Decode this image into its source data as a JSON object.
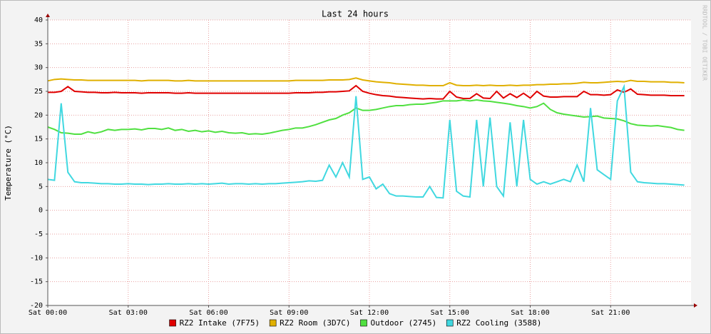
{
  "chart_data": {
    "type": "line",
    "title": "Last 24 hours",
    "y_label": "Temperature (°C)",
    "watermark": "RRDTOOL / TOBI OETIKER",
    "xlim": [
      0,
      24
    ],
    "ylim": [
      -20,
      40
    ],
    "yticks": [
      -20,
      -15,
      -10,
      -5,
      0,
      5,
      10,
      15,
      20,
      25,
      30,
      35,
      40
    ],
    "xticks": [
      {
        "value": 0,
        "label": "Sat 00:00"
      },
      {
        "value": 3,
        "label": "Sat 03:00"
      },
      {
        "value": 6,
        "label": "Sat 06:00"
      },
      {
        "value": 9,
        "label": "Sat 09:00"
      },
      {
        "value": 12,
        "label": "Sat 12:00"
      },
      {
        "value": 15,
        "label": "Sat 15:00"
      },
      {
        "value": 18,
        "label": "Sat 18:00"
      },
      {
        "value": 21,
        "label": "Sat 21:00"
      }
    ],
    "grid": true,
    "legend": "bottom",
    "x": [
      0,
      0.25,
      0.5,
      0.75,
      1,
      1.25,
      1.5,
      1.75,
      2,
      2.25,
      2.5,
      2.75,
      3,
      3.25,
      3.5,
      3.75,
      4,
      4.25,
      4.5,
      4.75,
      5,
      5.25,
      5.5,
      5.75,
      6,
      6.25,
      6.5,
      6.75,
      7,
      7.25,
      7.5,
      7.75,
      8,
      8.25,
      8.5,
      8.75,
      9,
      9.25,
      9.5,
      9.75,
      10,
      10.25,
      10.5,
      10.75,
      11,
      11.25,
      11.5,
      11.75,
      12,
      12.25,
      12.5,
      12.75,
      13,
      13.25,
      13.5,
      13.75,
      14,
      14.25,
      14.5,
      14.75,
      15,
      15.25,
      15.5,
      15.75,
      16,
      16.25,
      16.5,
      16.75,
      17,
      17.25,
      17.5,
      17.75,
      18,
      18.25,
      18.5,
      18.75,
      19,
      19.25,
      19.5,
      19.75,
      20,
      20.25,
      20.5,
      20.75,
      21,
      21.25,
      21.5,
      21.75,
      22,
      22.25,
      22.5,
      22.75,
      23,
      23.25,
      23.5,
      23.75
    ],
    "series": [
      {
        "name": "RZ2 Intake (7F75)",
        "color": "#e00000",
        "values": [
          24.8,
          24.8,
          25,
          26,
          25,
          24.9,
          24.8,
          24.8,
          24.7,
          24.7,
          24.8,
          24.7,
          24.7,
          24.7,
          24.6,
          24.7,
          24.7,
          24.7,
          24.7,
          24.6,
          24.6,
          24.7,
          24.6,
          24.6,
          24.6,
          24.6,
          24.6,
          24.6,
          24.6,
          24.6,
          24.6,
          24.6,
          24.6,
          24.6,
          24.6,
          24.6,
          24.6,
          24.7,
          24.7,
          24.7,
          24.8,
          24.8,
          24.9,
          24.9,
          25,
          25.1,
          26.2,
          25,
          24.6,
          24.3,
          24.1,
          24,
          23.8,
          23.7,
          23.6,
          23.5,
          23.4,
          23.5,
          23.4,
          23.4,
          25,
          23.8,
          23.5,
          23.5,
          24.5,
          23.6,
          23.5,
          25,
          23.6,
          24.5,
          23.7,
          24.6,
          23.6,
          25,
          24,
          23.8,
          23.8,
          23.9,
          23.9,
          23.9,
          25,
          24.3,
          24.3,
          24.2,
          24.3,
          25.3,
          24.8,
          25.5,
          24.4,
          24.3,
          24.2,
          24.2,
          24.2,
          24.1,
          24.1,
          24.1
        ]
      },
      {
        "name": "RZ2 Room (3D7C)",
        "color": "#e0b000",
        "values": [
          27.2,
          27.5,
          27.6,
          27.5,
          27.4,
          27.4,
          27.3,
          27.3,
          27.3,
          27.3,
          27.3,
          27.3,
          27.3,
          27.3,
          27.2,
          27.3,
          27.3,
          27.3,
          27.3,
          27.2,
          27.2,
          27.3,
          27.2,
          27.2,
          27.2,
          27.2,
          27.2,
          27.2,
          27.2,
          27.2,
          27.2,
          27.2,
          27.2,
          27.2,
          27.2,
          27.2,
          27.2,
          27.3,
          27.3,
          27.3,
          27.3,
          27.3,
          27.4,
          27.4,
          27.4,
          27.5,
          27.8,
          27.4,
          27.2,
          27,
          26.9,
          26.8,
          26.6,
          26.5,
          26.4,
          26.3,
          26.3,
          26.2,
          26.2,
          26.2,
          26.8,
          26.3,
          26.2,
          26.2,
          26.3,
          26.2,
          26.3,
          26.2,
          26.2,
          26.3,
          26.2,
          26.3,
          26.3,
          26.4,
          26.4,
          26.5,
          26.5,
          26.6,
          26.6,
          26.7,
          26.9,
          26.8,
          26.8,
          26.9,
          27,
          27.1,
          27,
          27.3,
          27.1,
          27.1,
          27,
          27,
          27,
          26.9,
          26.9,
          26.8
        ]
      },
      {
        "name": "Outdoor (2745)",
        "color": "#50e040",
        "values": [
          17.5,
          17,
          16.3,
          16.2,
          16,
          16,
          16.5,
          16.2,
          16.5,
          17,
          16.8,
          17,
          17,
          17.1,
          16.9,
          17.2,
          17.2,
          17,
          17.3,
          16.8,
          17,
          16.6,
          16.8,
          16.5,
          16.7,
          16.4,
          16.6,
          16.3,
          16.2,
          16.3,
          16,
          16.1,
          16,
          16.2,
          16.5,
          16.8,
          17,
          17.3,
          17.3,
          17.6,
          18,
          18.5,
          19,
          19.3,
          20,
          20.5,
          21.5,
          21,
          21,
          21.2,
          21.5,
          21.8,
          22,
          22,
          22.2,
          22.3,
          22.3,
          22.5,
          22.7,
          23,
          23,
          23,
          23.2,
          23,
          23.2,
          23,
          22.9,
          22.7,
          22.5,
          22.3,
          22,
          21.8,
          21.5,
          21.8,
          22.5,
          21.2,
          20.5,
          20.2,
          20,
          19.8,
          19.6,
          19.7,
          19.8,
          19.4,
          19.3,
          19.2,
          18.8,
          18.2,
          17.9,
          17.8,
          17.7,
          17.8,
          17.6,
          17.4,
          17,
          16.8
        ]
      },
      {
        "name": "RZ2 Cooling (3588)",
        "color": "#40d8e0",
        "values": [
          6.5,
          6.3,
          22.5,
          8,
          6,
          5.8,
          5.8,
          5.7,
          5.6,
          5.6,
          5.5,
          5.5,
          5.6,
          5.5,
          5.5,
          5.4,
          5.5,
          5.5,
          5.6,
          5.5,
          5.5,
          5.6,
          5.5,
          5.6,
          5.5,
          5.6,
          5.7,
          5.5,
          5.6,
          5.6,
          5.5,
          5.6,
          5.5,
          5.6,
          5.6,
          5.7,
          5.8,
          5.9,
          6,
          6.2,
          6.1,
          6.3,
          9.5,
          7,
          10,
          7,
          24,
          6.5,
          7,
          4.5,
          5.5,
          3.5,
          3,
          3,
          2.9,
          2.8,
          2.8,
          5,
          2.7,
          2.6,
          19,
          4,
          3,
          2.8,
          19,
          5,
          19.5,
          5,
          3,
          18.5,
          5,
          19,
          6.5,
          5.5,
          6,
          5.5,
          6,
          6.5,
          6,
          9.5,
          6,
          21.5,
          8.5,
          7.5,
          6.5,
          23,
          26,
          8,
          6,
          5.8,
          5.7,
          5.6,
          5.6,
          5.5,
          5.4,
          5.3
        ]
      }
    ]
  }
}
